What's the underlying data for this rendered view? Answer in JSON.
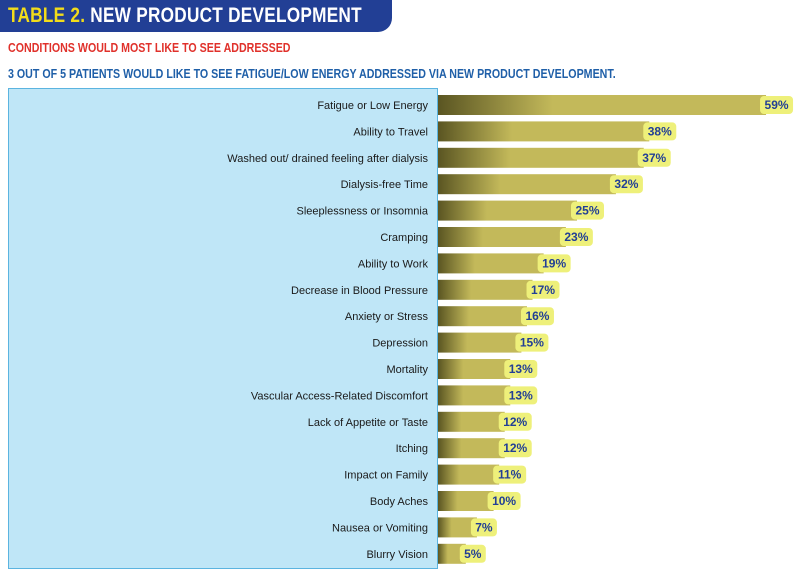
{
  "header": {
    "title_lead": "TABLE 2.",
    "title_rest": " NEW PRODUCT DEVELOPMENT",
    "subtitle": "CONDITIONS WOULD MOST LIKE TO SEE ADDRESSED",
    "note": "3 OUT OF 5 PATIENTS WOULD LIKE TO SEE FATIGUE/LOW ENERGY ADDRESSED VIA NEW PRODUCT DEVELOPMENT."
  },
  "colors": {
    "banner": "#223f95",
    "title_accent": "#f2dc1a",
    "subtitle": "#e0312b",
    "note": "#1f5fa8",
    "label_panel": "#bfe6f7",
    "bar_dark": "#5a5522",
    "bar_light": "#c3b95a",
    "value_badge": "#eef07a",
    "value_text": "#223f95"
  },
  "chart_data": {
    "type": "bar",
    "orientation": "horizontal",
    "categories": [
      "Fatigue or Low Energy",
      "Ability to Travel",
      "Washed out/ drained feeling after dialysis",
      "Dialysis-free Time",
      "Sleeplessness or Insomnia",
      "Cramping",
      "Ability to Work",
      "Decrease in Blood Pressure",
      "Anxiety or Stress",
      "Depression",
      "Mortality",
      "Vascular Access-Related Discomfort",
      "Lack of Appetite or Taste",
      "Itching",
      "Impact on Family",
      "Body Aches",
      "Nausea or Vomiting",
      "Blurry Vision"
    ],
    "values": [
      59,
      38,
      37,
      32,
      25,
      23,
      19,
      17,
      16,
      15,
      13,
      13,
      12,
      12,
      11,
      10,
      7,
      5
    ],
    "value_labels": [
      "59%",
      "38%",
      "37%",
      "32%",
      "25%",
      "23%",
      "19%",
      "17%",
      "16%",
      "15%",
      "13%",
      "13%",
      "12%",
      "12%",
      "11%",
      "10%",
      "7%",
      "5%"
    ],
    "xlim": [
      0,
      100
    ],
    "grid": false,
    "legend": "none"
  }
}
